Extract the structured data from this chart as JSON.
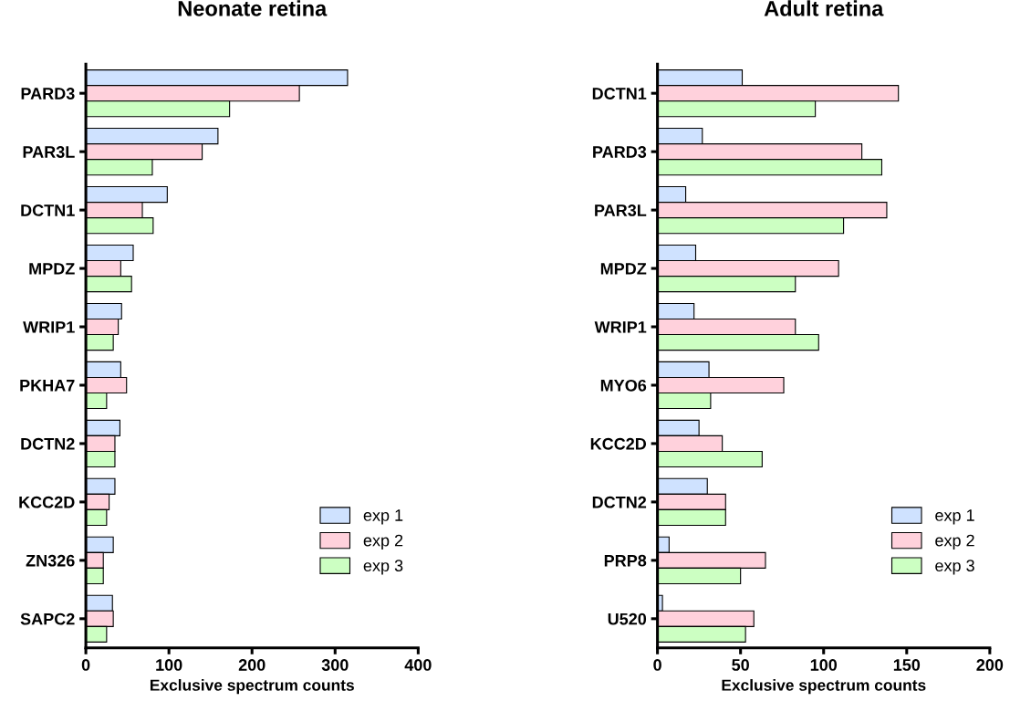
{
  "chart_data": [
    {
      "type": "bar",
      "orientation": "horizontal",
      "title": "Neonate retina",
      "xlabel": "Exclusive spectrum counts",
      "categories": [
        "PARD3",
        "PAR3L",
        "DCTN1",
        "MPDZ",
        "WRIP1",
        "PKHA7",
        "DCTN2",
        "KCC2D",
        "ZN326",
        "SAPC2"
      ],
      "series": [
        {
          "name": "exp 1",
          "color": "#cfe2ff",
          "values": [
            315,
            159,
            98,
            57,
            43,
            42,
            41,
            35,
            33,
            32
          ]
        },
        {
          "name": "exp 2",
          "color": "#ffd1dc",
          "values": [
            257,
            140,
            68,
            42,
            39,
            49,
            35,
            28,
            21,
            33
          ]
        },
        {
          "name": "exp 3",
          "color": "#ccffc2",
          "values": [
            173,
            80,
            81,
            55,
            33,
            25,
            35,
            25,
            21,
            25
          ]
        }
      ],
      "xlim": [
        0,
        400
      ],
      "xticks": [
        0,
        100,
        200,
        300,
        400
      ],
      "grid": false,
      "legend": "bottom right"
    },
    {
      "type": "bar",
      "orientation": "horizontal",
      "title": "Adult retina",
      "xlabel": "Exclusive spectrum counts",
      "categories": [
        "DCTN1",
        "PARD3",
        "PAR3L",
        "MPDZ",
        "WRIP1",
        "MYO6",
        "KCC2D",
        "DCTN2",
        "PRP8",
        "U520"
      ],
      "series": [
        {
          "name": "exp 1",
          "color": "#cfe2ff",
          "values": [
            51,
            27,
            17,
            23,
            22,
            31,
            25,
            30,
            7,
            3
          ]
        },
        {
          "name": "exp 2",
          "color": "#ffd1dc",
          "values": [
            145,
            123,
            138,
            109,
            83,
            76,
            39,
            41,
            65,
            58
          ]
        },
        {
          "name": "exp 3",
          "color": "#ccffc2",
          "values": [
            95,
            135,
            112,
            83,
            97,
            32,
            63,
            41,
            50,
            53
          ]
        }
      ],
      "xlim": [
        0,
        200
      ],
      "xticks": [
        0,
        50,
        100,
        150,
        200
      ],
      "grid": false,
      "legend": "bottom right"
    }
  ]
}
